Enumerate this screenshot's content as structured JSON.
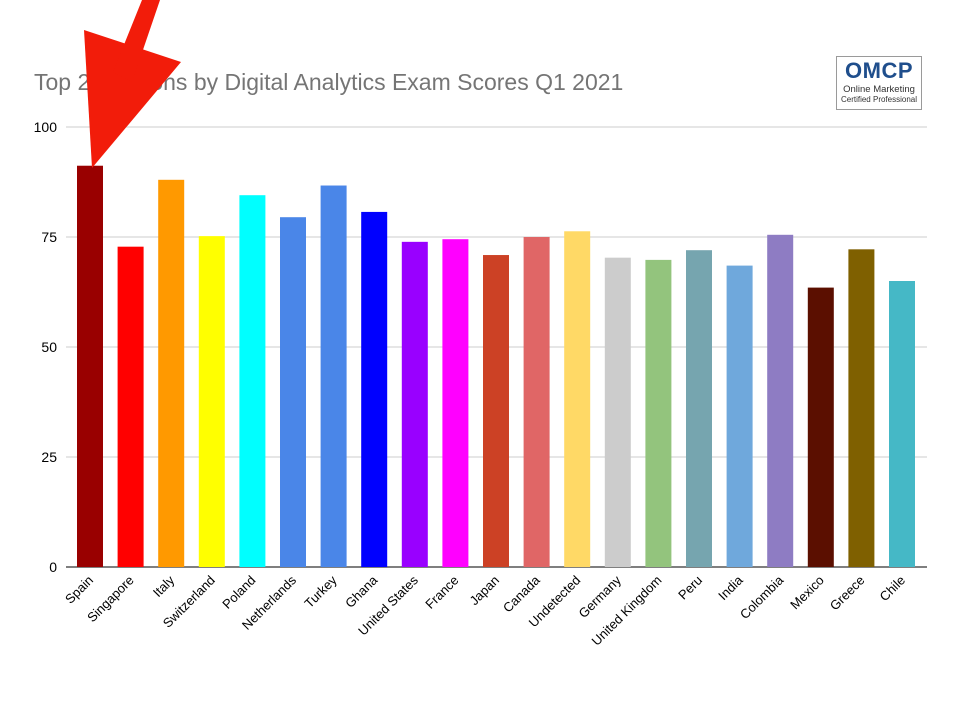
{
  "chart_data": {
    "type": "bar",
    "title": "Top 21 Nations by Digital Analytics Exam Scores Q1 2021",
    "categories": [
      "Spain",
      "Singapore",
      "Italy",
      "Switzerland",
      "Poland",
      "Netherlands",
      "Turkey",
      "Ghana",
      "United States",
      "France",
      "Japan",
      "Canada",
      "Undetected",
      "Germany",
      "United Kingdom",
      "Peru",
      "India",
      "Colombia",
      "Mexico",
      "Greece",
      "Chile"
    ],
    "values": [
      91.2,
      72.8,
      88.0,
      75.2,
      84.5,
      79.5,
      86.7,
      80.7,
      73.9,
      74.5,
      70.9,
      75.0,
      76.3,
      70.3,
      69.8,
      72.0,
      68.5,
      75.5,
      63.5,
      72.2,
      65.0
    ],
    "colors": [
      "#990000",
      "#ff0000",
      "#ff9900",
      "#ffff00",
      "#00ffff",
      "#4a86e8",
      "#4a86e8",
      "#0000ff",
      "#9900ff",
      "#ff00ff",
      "#cc4125",
      "#e06666",
      "#ffd966",
      "#cccccc",
      "#93c47d",
      "#76a5af",
      "#6fa8dc",
      "#8e7cc3",
      "#5b0f00",
      "#7f6000",
      "#45b8c6"
    ],
    "yticks": [
      0,
      25,
      50,
      75,
      100
    ],
    "ylim": [
      0,
      100
    ],
    "xlabel": "",
    "ylabel": "",
    "grid": true,
    "legend": "none"
  },
  "logo": {
    "mark": "OMCP",
    "line1": "Online Marketing",
    "line2": "Certified Professional"
  },
  "annotation": {
    "type": "arrow",
    "color": "#f21c0a",
    "points_to": "Spain"
  }
}
